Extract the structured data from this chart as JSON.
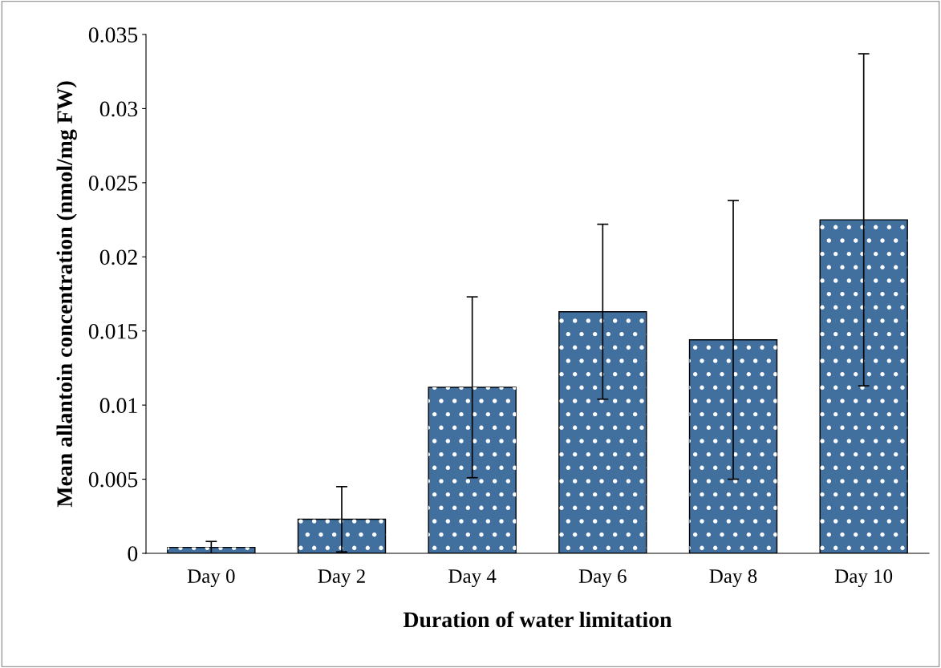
{
  "chart_data": {
    "type": "bar",
    "xlabel": "Duration of water limitation",
    "ylabel": "Mean allantoin concentration (nmol/mg FW)",
    "categories": [
      "Day 0",
      "Day 2",
      "Day 4",
      "Day 6",
      "Day 8",
      "Day 10"
    ],
    "values": [
      0.0004,
      0.0023,
      0.0112,
      0.0163,
      0.0144,
      0.0225
    ],
    "errors": [
      0.0004,
      0.0022,
      0.0061,
      0.0059,
      0.0094,
      0.0112
    ],
    "color": "#41709f",
    "ylim": [
      0,
      0.035
    ],
    "yticks": [
      0,
      0.005,
      0.01,
      0.015,
      0.02,
      0.025,
      0.03,
      0.035
    ],
    "grid": false,
    "legend": false
  }
}
